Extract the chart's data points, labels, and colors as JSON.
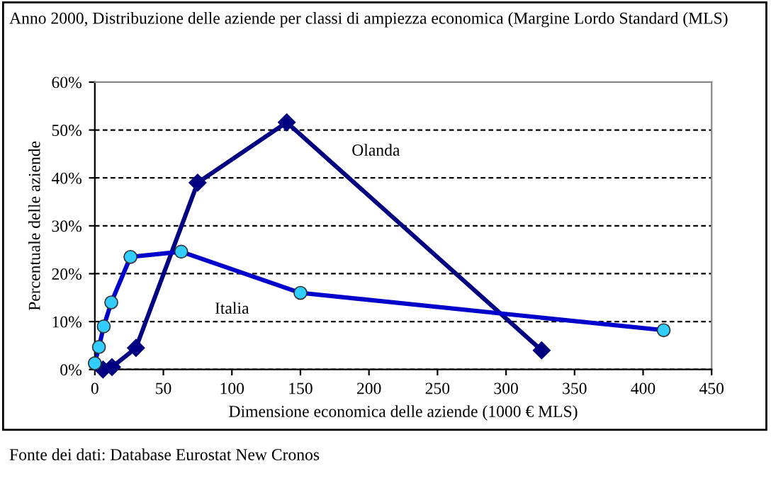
{
  "chart_data": {
    "type": "line",
    "title": "Anno 2000, Distribuzione delle aziende per classi di ampiezza economica (Margine Lordo Standard (MLS)",
    "xlabel": "Dimensione economica delle aziende (1000 € MLS)",
    "ylabel": "Percentuale delle aziende",
    "annotations": [
      "Fonte dei dati: Database Eurostat New Cronos"
    ],
    "series": [
      {
        "name": "Olanda",
        "color": "#000080",
        "marker": "diamond",
        "x": [
          6,
          12.5,
          30,
          75,
          140,
          326
        ],
        "values": [
          0,
          0.5,
          4.5,
          39,
          51.6,
          4
        ]
      },
      {
        "name": "Italia",
        "color": "#33ccff",
        "marker": "circle",
        "x": [
          0,
          3,
          6.5,
          12,
          26,
          63,
          150,
          415
        ],
        "values": [
          1.3,
          4.7,
          9,
          14,
          23.5,
          24.6,
          16,
          8.2
        ]
      }
    ],
    "xlim": [
      0,
      450
    ],
    "xticks": [
      0,
      50,
      100,
      150,
      200,
      250,
      300,
      350,
      400,
      450
    ],
    "ylim": [
      0,
      60
    ],
    "yticks": [
      {
        "value": 0,
        "label": "0%"
      },
      {
        "value": 10,
        "label": "10%"
      },
      {
        "value": 20,
        "label": "20%"
      },
      {
        "value": 30,
        "label": "30%"
      },
      {
        "value": 40,
        "label": "40%"
      },
      {
        "value": 50,
        "label": "50%"
      },
      {
        "value": 60,
        "label": "60%"
      }
    ],
    "grid": "y",
    "legend": false
  }
}
